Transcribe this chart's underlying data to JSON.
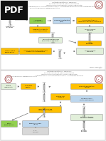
{
  "bg_color": "#f0f0f0",
  "page_color": "#ffffff",
  "pdf_box_color": "#1a1a1a",
  "box_green": "#92d050",
  "box_yellow": "#ffc000",
  "box_blue_light": "#dce6f1",
  "box_orange": "#ffc000",
  "box_lavender": "#e2efda",
  "arrow_color": "#595959",
  "text_dark": "#404040",
  "text_header": "#595959",
  "logo_color": "#8b1a1a",
  "separator_color": "#cccccc"
}
